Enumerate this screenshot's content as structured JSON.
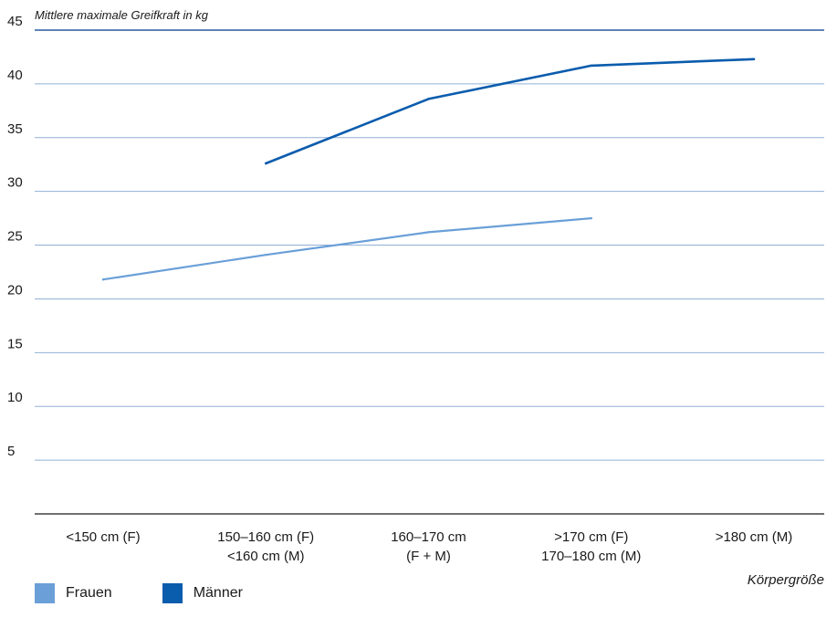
{
  "chart_data": {
    "type": "line",
    "ylabel": "Mittlere maximale Greifkraft in kg",
    "xlabel": "Körpergröße",
    "ylim": [
      0,
      45
    ],
    "yticks": [
      5,
      10,
      15,
      20,
      25,
      30,
      35,
      40,
      45
    ],
    "categories": [
      [
        "<150 cm (F)"
      ],
      [
        "150–160 cm (F)",
        "<160 cm (M)"
      ],
      [
        "160–170 cm",
        "(F + M)"
      ],
      [
        ">170 cm (F)",
        "170–180 cm (M)"
      ],
      [
        ">180 cm (M)"
      ]
    ],
    "grid": true,
    "legend_position": "bottom-left",
    "series": [
      {
        "name": "Frauen",
        "color": "#6a9fd8",
        "values": [
          21.8,
          24.1,
          26.2,
          27.5,
          null
        ]
      },
      {
        "name": "Männer",
        "color": "#0a5cad",
        "values": [
          null,
          32.6,
          38.6,
          41.7,
          42.3
        ]
      }
    ]
  }
}
